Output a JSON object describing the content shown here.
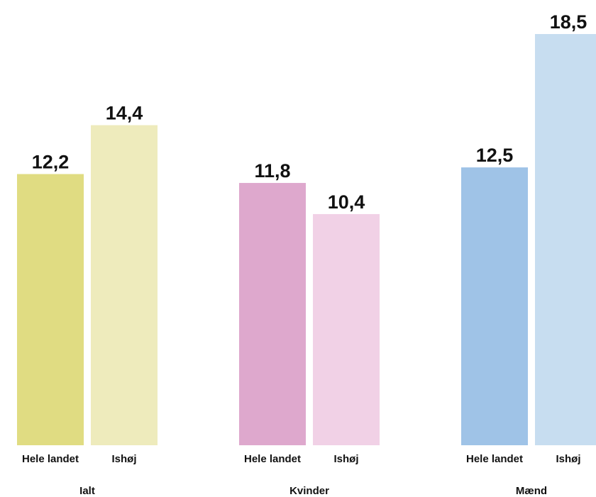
{
  "chart_data": {
    "type": "bar",
    "ylim": [
      0,
      18.5
    ],
    "grid": false,
    "groups": [
      {
        "name": "Ialt",
        "bars": [
          {
            "label": "Hele landet",
            "value": 12.2,
            "display": "12,2",
            "color": "#e0dc82"
          },
          {
            "label": "Ishøj",
            "value": 14.4,
            "display": "14,4",
            "color": "#eeebbc"
          }
        ]
      },
      {
        "name": "Kvinder",
        "bars": [
          {
            "label": "Hele landet",
            "value": 11.8,
            "display": "11,8",
            "color": "#dea8cd"
          },
          {
            "label": "Ishøj",
            "value": 10.4,
            "display": "10,4",
            "color": "#f1d1e6"
          }
        ]
      },
      {
        "name": "Mænd",
        "bars": [
          {
            "label": "Hele landet",
            "value": 12.5,
            "display": "12,5",
            "color": "#9fc3e7"
          },
          {
            "label": "Ishøj",
            "value": 18.5,
            "display": "18,5",
            "color": "#c7ddf0"
          }
        ]
      }
    ]
  }
}
